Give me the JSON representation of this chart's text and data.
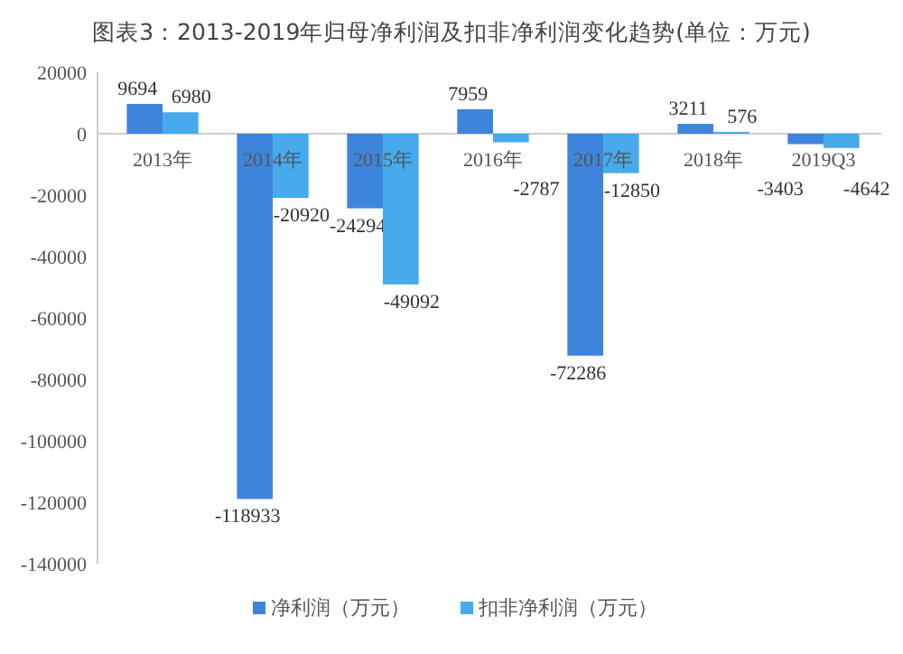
{
  "chart_data": {
    "type": "bar",
    "title": "图表3：2013-2019年归母净利润及扣非净利润变化趋势(单位：万元)",
    "categories": [
      "2013年",
      "2014年",
      "2015年",
      "2016年",
      "2017年",
      "2018年",
      "2019Q3"
    ],
    "series": [
      {
        "name": "净利润（万元）",
        "color": "#3d85dc",
        "values": [
          9694,
          -118933,
          -24294,
          7959,
          -72286,
          3211,
          -3403
        ]
      },
      {
        "name": "扣非净利润（万元）",
        "color": "#46aaec",
        "values": [
          6980,
          -20920,
          -49092,
          -2787,
          -12850,
          576,
          -4642
        ]
      }
    ],
    "ylim": [
      -140000,
      20000
    ],
    "yticks": [
      20000,
      0,
      -20000,
      -40000,
      -60000,
      -80000,
      -100000,
      -120000,
      -140000
    ],
    "data_labels": true,
    "legend": "bottom"
  }
}
